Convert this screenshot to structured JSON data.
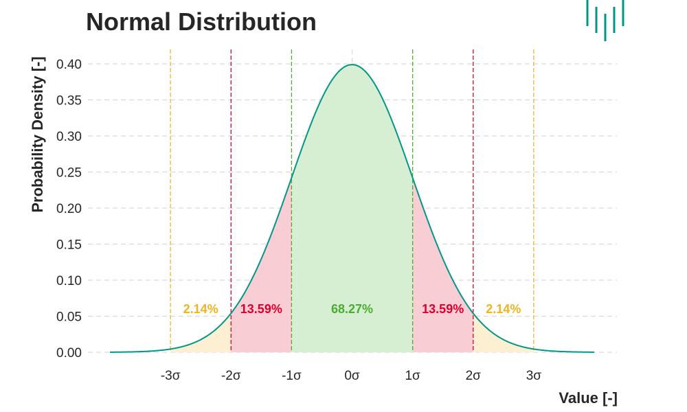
{
  "chart_data": {
    "type": "area",
    "title": "Normal Distribution",
    "xlabel": "Value [-]",
    "ylabel": "Probability Density [-]",
    "xlim": [
      -4,
      4
    ],
    "ylim": [
      0,
      0.4
    ],
    "grid": true,
    "yticks": [
      {
        "value": 0.0,
        "label": "0.00"
      },
      {
        "value": 0.05,
        "label": "0.05"
      },
      {
        "value": 0.1,
        "label": "0.10"
      },
      {
        "value": 0.15,
        "label": "0.15"
      },
      {
        "value": 0.2,
        "label": "0.20"
      },
      {
        "value": 0.25,
        "label": "0.25"
      },
      {
        "value": 0.3,
        "label": "0.30"
      },
      {
        "value": 0.35,
        "label": "0.35"
      },
      {
        "value": 0.4,
        "label": "0.40"
      }
    ],
    "xticks": [
      {
        "value": -3,
        "label": "-3σ"
      },
      {
        "value": -2,
        "label": "-2σ"
      },
      {
        "value": -1,
        "label": "-1σ"
      },
      {
        "value": 0,
        "label": "0σ"
      },
      {
        "value": 1,
        "label": "1σ"
      },
      {
        "value": 2,
        "label": "2σ"
      },
      {
        "value": 3,
        "label": "3σ"
      }
    ],
    "curve": {
      "mean": 0,
      "sd": 1,
      "x_range": [
        -4,
        4
      ],
      "color": "#009688"
    },
    "regions": [
      {
        "from": -3,
        "to": -2,
        "fill": "#fdf0d2",
        "label": "2.14%",
        "label_color": "#f0b41e",
        "label_x": -2.5,
        "label_y": 0.06
      },
      {
        "from": -2,
        "to": -1,
        "fill": "#f9cdd4",
        "label": "13.59%",
        "label_color": "#d9002f",
        "label_x": -1.5,
        "label_y": 0.06
      },
      {
        "from": -1,
        "to": 1,
        "fill": "#d6efd2",
        "label": "68.27%",
        "label_color": "#4aad32",
        "label_x": 0,
        "label_y": 0.06
      },
      {
        "from": 1,
        "to": 2,
        "fill": "#f9cdd4",
        "label": "13.59%",
        "label_color": "#d9002f",
        "label_x": 1.5,
        "label_y": 0.06
      },
      {
        "from": 2,
        "to": 3,
        "fill": "#fdf0d2",
        "label": "2.14%",
        "label_color": "#f0b41e",
        "label_x": 2.5,
        "label_y": 0.06
      }
    ],
    "vlines": [
      {
        "x": -3,
        "color": "#f0b41e"
      },
      {
        "x": -2,
        "color": "#d9002f"
      },
      {
        "x": -1,
        "color": "#4aad32"
      },
      {
        "x": 1,
        "color": "#4aad32"
      },
      {
        "x": 2,
        "color": "#d9002f"
      },
      {
        "x": 3,
        "color": "#f0b41e"
      }
    ],
    "center_line": {
      "x": 0,
      "color": "#d9d9d9"
    }
  },
  "logo": {
    "name": "bars-logo-icon",
    "color": "#009688"
  }
}
